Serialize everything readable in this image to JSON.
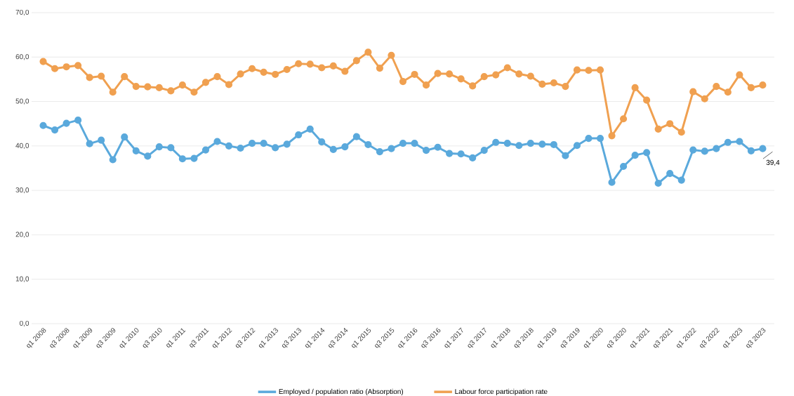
{
  "chart_data": {
    "type": "line",
    "categories": [
      "q1 2008",
      null,
      "q3 2008",
      null,
      "q1 2009",
      null,
      "q3 2009",
      null,
      "q1 2010",
      null,
      "q3 2010",
      null,
      "q1 2011",
      null,
      "q3 2011",
      null,
      "q1 2012",
      null,
      "q3 2012",
      null,
      "q1 2013",
      null,
      "q3 2013",
      null,
      "q1 2014",
      null,
      "q3 2014",
      null,
      "q1 2015",
      null,
      "q3 2015",
      null,
      "q1 2016",
      null,
      "q3 2016",
      null,
      "q1 2017",
      null,
      "q3 2017",
      null,
      "q1 2018",
      null,
      "q3 2018",
      null,
      "q1 2019",
      null,
      "q3 2019",
      null,
      "q1 2020",
      null,
      "q3 2020",
      null,
      "q1 2021",
      null,
      "q3 2021",
      null,
      "q1 2022",
      null,
      "q3 2022",
      null,
      "q1 2023",
      null,
      "q3 2023"
    ],
    "series": [
      {
        "name": "Employed / population ratio (Absorption)",
        "color": "#5aa9dc",
        "values": [
          44.6,
          43.6,
          45.1,
          45.8,
          40.5,
          41.3,
          36.9,
          42.0,
          38.9,
          37.7,
          39.8,
          39.6,
          37.1,
          37.2,
          39.1,
          41.0,
          40.0,
          39.5,
          40.6,
          40.6,
          39.6,
          40.4,
          42.5,
          43.8,
          40.9,
          39.2,
          39.8,
          42.1,
          40.3,
          38.7,
          39.4,
          40.6,
          40.6,
          39.0,
          39.7,
          38.3,
          38.2,
          37.3,
          39.0,
          40.8,
          40.6,
          40.1,
          40.6,
          40.4,
          40.3,
          37.8,
          40.1,
          41.7,
          41.7,
          31.8,
          35.4,
          37.9,
          38.5,
          31.6,
          33.8,
          32.3,
          39.1,
          38.8,
          39.4,
          40.8,
          41.0,
          38.9,
          39.4
        ]
      },
      {
        "name": "Labour force participation rate",
        "color": "#f0a050",
        "values": [
          59.0,
          57.4,
          57.8,
          58.1,
          55.4,
          55.7,
          52.1,
          55.6,
          53.4,
          53.3,
          53.1,
          52.4,
          53.7,
          52.1,
          54.3,
          55.6,
          53.8,
          56.2,
          57.4,
          56.6,
          56.1,
          57.2,
          58.5,
          58.4,
          57.6,
          58.0,
          56.8,
          59.2,
          61.1,
          57.5,
          60.4,
          54.5,
          56.1,
          53.7,
          56.3,
          56.2,
          55.1,
          53.5,
          55.6,
          56.0,
          57.6,
          56.2,
          55.7,
          53.9,
          54.2,
          53.4,
          57.1,
          57.0,
          57.1,
          42.3,
          46.1,
          53.1,
          50.3,
          43.8,
          45.0,
          43.1,
          52.2,
          50.6,
          53.4,
          52.1,
          56.0,
          53.1,
          53.7
        ]
      }
    ],
    "ylim": [
      0,
      70
    ],
    "yticks": [
      {
        "value": 0,
        "label": "0,0"
      },
      {
        "value": 10,
        "label": "10,0"
      },
      {
        "value": 20,
        "label": "20,0"
      },
      {
        "value": 30,
        "label": "30,0"
      },
      {
        "value": 40,
        "label": "40,0"
      },
      {
        "value": 50,
        "label": "50,0"
      },
      {
        "value": 60,
        "label": "60,0"
      },
      {
        "value": 70,
        "label": "70,0"
      }
    ],
    "annotations": [
      {
        "text": "39,4",
        "x": "q3 2023",
        "y": 39.4
      }
    ],
    "grid": "y",
    "legend": "bottom",
    "marker": "circle",
    "line_style": "solid"
  }
}
